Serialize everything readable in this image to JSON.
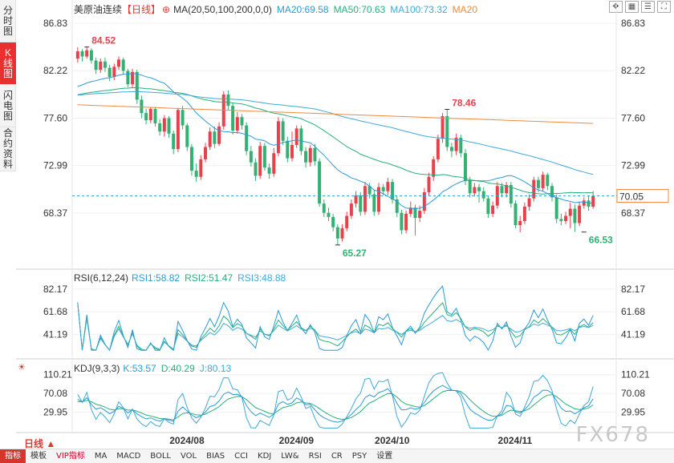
{
  "left_tabs": [
    {
      "label": "分时图",
      "active": false
    },
    {
      "label": "K线图",
      "active": true
    },
    {
      "label": "闪电图",
      "active": false
    },
    {
      "label": "合约资料",
      "active": false
    }
  ],
  "toolbar_icons": [
    "expand-icon",
    "grid-icon",
    "list-icon",
    "fullscreen-icon"
  ],
  "main_header": {
    "title": "美原油连续",
    "period": "【日线】",
    "ma_params": "MA(20,50,100,200,0,0)",
    "ma20": "MA20:69.58",
    "ma50": "MA50:70.63",
    "ma100": "MA100:73.32",
    "ma200": "MA20"
  },
  "rsi_header": {
    "name": "RSI(6,12,24)",
    "rsi1": "RSI1:58.82",
    "rsi2": "RSI2:51.47",
    "rsi3": "RSI3:48.88"
  },
  "kdj_header": {
    "name": "KDJ(9,3,3)",
    "k": "K:53.57",
    "d": "D:40.29",
    "j": "J:80.13"
  },
  "period_selector": "日线 ▲",
  "bottom_tabs": [
    "指标",
    "模板",
    "VIP指标",
    "MA",
    "MACD",
    "BOLL",
    "VOL",
    "BIAS",
    "CCI",
    "KDJ",
    "LW&",
    "RSI",
    "CR",
    "PSY",
    "设置"
  ],
  "watermark": "FX678",
  "colors": {
    "up": "#e8414b",
    "down": "#33b173",
    "ma20": "#2a9ad6",
    "ma50": "#26b07a",
    "ma100": "#3fa9d6",
    "ma200": "#ef8a3c",
    "grid": "#e6e6e6"
  },
  "chart_data": {
    "type": "candlestick",
    "price_axis": {
      "ticks": [
        86.83,
        82.22,
        77.6,
        72.99,
        68.37
      ],
      "range": [
        63.0,
        88.0
      ]
    },
    "last_price": 70.05,
    "annotations": [
      {
        "label": "84.52",
        "value": 84.52,
        "kind": "high"
      },
      {
        "label": "78.46",
        "value": 78.46,
        "kind": "high"
      },
      {
        "label": "65.27",
        "value": 65.27,
        "kind": "low"
      },
      {
        "label": "66.53",
        "value": 66.53,
        "kind": "low"
      }
    ],
    "x_labels": [
      "2024/08",
      "2024/09",
      "2024/10",
      "2024/11"
    ],
    "candles": [
      [
        83.4,
        84.1,
        84.5,
        83.0
      ],
      [
        84.1,
        83.6,
        84.3,
        83.1
      ],
      [
        83.6,
        84.2,
        84.52,
        83.4
      ],
      [
        84.2,
        83.2,
        84.4,
        82.9
      ],
      [
        83.2,
        82.3,
        83.5,
        81.9
      ],
      [
        82.3,
        83.1,
        83.4,
        82.0
      ],
      [
        83.1,
        82.5,
        83.5,
        82.1
      ],
      [
        82.5,
        81.6,
        82.8,
        81.2
      ],
      [
        81.6,
        82.6,
        82.9,
        81.3
      ],
      [
        82.6,
        83.3,
        83.6,
        82.3
      ],
      [
        83.3,
        82.2,
        83.5,
        81.8
      ],
      [
        82.2,
        80.9,
        82.4,
        80.6
      ],
      [
        80.9,
        82.1,
        82.4,
        80.6
      ],
      [
        82.1,
        79.4,
        82.3,
        79.0
      ],
      [
        79.4,
        78.1,
        79.8,
        77.6
      ],
      [
        78.1,
        77.4,
        78.5,
        77.0
      ],
      [
        77.4,
        78.5,
        78.7,
        77.1
      ],
      [
        78.5,
        77.1,
        78.7,
        76.8
      ],
      [
        77.1,
        76.3,
        77.5,
        75.9
      ],
      [
        76.3,
        77.6,
        77.9,
        75.8
      ],
      [
        77.6,
        76.1,
        77.8,
        75.7
      ],
      [
        76.1,
        74.6,
        76.4,
        74.1
      ],
      [
        74.6,
        78.4,
        78.6,
        74.3
      ],
      [
        78.4,
        76.9,
        78.8,
        76.5
      ],
      [
        76.9,
        74.8,
        77.1,
        74.4
      ],
      [
        74.8,
        72.5,
        75.1,
        72.0
      ],
      [
        72.5,
        71.9,
        73.2,
        71.4
      ],
      [
        71.9,
        73.6,
        74.0,
        71.6
      ],
      [
        73.6,
        74.8,
        75.2,
        73.3
      ],
      [
        74.8,
        76.3,
        76.7,
        74.5
      ],
      [
        76.3,
        75.1,
        76.8,
        74.7
      ],
      [
        75.1,
        76.8,
        77.2,
        74.9
      ],
      [
        76.8,
        79.9,
        80.2,
        76.5
      ],
      [
        79.9,
        78.8,
        80.3,
        78.4
      ],
      [
        78.8,
        76.4,
        79.1,
        76.0
      ],
      [
        76.4,
        77.7,
        78.2,
        76.1
      ],
      [
        77.7,
        76.9,
        78.0,
        76.5
      ],
      [
        76.9,
        74.4,
        77.2,
        74.0
      ],
      [
        74.4,
        73.3,
        74.9,
        72.9
      ],
      [
        73.3,
        72.0,
        73.7,
        71.5
      ],
      [
        72.0,
        74.9,
        75.3,
        71.7
      ],
      [
        74.9,
        72.8,
        75.2,
        72.5
      ],
      [
        72.8,
        72.2,
        73.2,
        71.7
      ],
      [
        72.2,
        74.2,
        74.7,
        71.9
      ],
      [
        74.2,
        77.3,
        77.7,
        73.9
      ],
      [
        77.3,
        75.4,
        77.6,
        75.0
      ],
      [
        75.4,
        73.7,
        75.8,
        73.3
      ],
      [
        73.7,
        75.0,
        76.3,
        73.4
      ],
      [
        75.0,
        76.6,
        76.9,
        74.7
      ],
      [
        76.6,
        74.4,
        76.9,
        74.0
      ],
      [
        74.4,
        73.3,
        74.8,
        72.8
      ],
      [
        73.3,
        74.7,
        75.0,
        72.9
      ],
      [
        74.7,
        73.4,
        75.1,
        73.0
      ],
      [
        73.4,
        69.3,
        73.7,
        69.0
      ],
      [
        69.3,
        68.4,
        69.7,
        68.0
      ],
      [
        68.4,
        68.0,
        68.9,
        67.6
      ],
      [
        68.0,
        67.0,
        68.3,
        66.6
      ],
      [
        67.0,
        65.9,
        67.3,
        65.27
      ],
      [
        65.9,
        66.9,
        67.3,
        65.6
      ],
      [
        66.9,
        68.1,
        68.5,
        66.6
      ],
      [
        68.1,
        69.3,
        69.7,
        67.8
      ],
      [
        69.3,
        70.1,
        70.5,
        68.9
      ],
      [
        70.1,
        68.5,
        70.4,
        68.1
      ],
      [
        68.5,
        71.0,
        71.4,
        68.2
      ],
      [
        71.0,
        70.2,
        71.3,
        69.8
      ],
      [
        70.2,
        68.5,
        70.6,
        68.1
      ],
      [
        68.5,
        70.9,
        71.3,
        68.2
      ],
      [
        70.9,
        70.5,
        71.2,
        70.1
      ],
      [
        70.5,
        71.4,
        71.8,
        70.1
      ],
      [
        71.4,
        69.7,
        71.7,
        69.3
      ],
      [
        69.7,
        68.4,
        70.0,
        68.0
      ],
      [
        68.4,
        66.7,
        68.7,
        66.3
      ],
      [
        66.7,
        68.3,
        68.6,
        66.4
      ],
      [
        68.3,
        68.9,
        69.5,
        68.0
      ],
      [
        68.9,
        67.9,
        69.2,
        66.2
      ],
      [
        67.9,
        68.6,
        69.1,
        67.5
      ],
      [
        68.6,
        70.4,
        70.8,
        68.3
      ],
      [
        70.4,
        71.9,
        72.3,
        70.1
      ],
      [
        71.9,
        73.6,
        73.9,
        71.5
      ],
      [
        73.6,
        75.6,
        76.0,
        73.3
      ],
      [
        75.6,
        77.8,
        78.1,
        75.2
      ],
      [
        77.8,
        74.8,
        78.46,
        74.4
      ],
      [
        74.8,
        74.4,
        75.2,
        73.8
      ],
      [
        74.4,
        75.7,
        76.1,
        74.0
      ],
      [
        75.7,
        74.2,
        76.0,
        73.8
      ],
      [
        74.2,
        71.5,
        74.6,
        71.1
      ],
      [
        71.5,
        70.3,
        71.9,
        69.9
      ],
      [
        70.3,
        70.9,
        71.3,
        70.0
      ],
      [
        70.9,
        70.5,
        71.2,
        69.4
      ],
      [
        70.5,
        69.8,
        70.9,
        69.5
      ],
      [
        69.8,
        68.3,
        70.1,
        67.9
      ],
      [
        68.3,
        69.1,
        69.5,
        68.0
      ],
      [
        69.1,
        71.0,
        71.4,
        68.8
      ],
      [
        71.0,
        70.3,
        71.3,
        69.9
      ],
      [
        70.3,
        71.1,
        71.4,
        69.9
      ],
      [
        71.1,
        69.3,
        71.4,
        68.9
      ],
      [
        69.3,
        67.2,
        69.6,
        66.9
      ],
      [
        67.2,
        67.6,
        68.1,
        66.5
      ],
      [
        67.6,
        69.0,
        69.4,
        67.3
      ],
      [
        69.0,
        69.8,
        70.2,
        68.6
      ],
      [
        69.8,
        71.6,
        71.9,
        69.5
      ],
      [
        71.6,
        70.8,
        71.9,
        70.4
      ],
      [
        70.8,
        72.1,
        72.4,
        70.5
      ],
      [
        72.1,
        71.0,
        72.3,
        70.6
      ],
      [
        71.0,
        69.9,
        71.3,
        69.5
      ],
      [
        69.9,
        67.8,
        70.2,
        67.4
      ],
      [
        67.8,
        67.6,
        68.3,
        67.2
      ],
      [
        67.6,
        68.1,
        68.5,
        67.3
      ],
      [
        68.1,
        68.8,
        69.4,
        66.9
      ],
      [
        68.8,
        67.4,
        69.2,
        66.53
      ],
      [
        67.4,
        69.1,
        69.5,
        67.1
      ],
      [
        69.1,
        69.6,
        69.9,
        68.8
      ],
      [
        69.6,
        69.0,
        70.1,
        68.6
      ],
      [
        69.0,
        70.05,
        70.5,
        68.8
      ]
    ],
    "rsi": {
      "axis_ticks": [
        82.17,
        61.68,
        41.19
      ]
    },
    "kdj": {
      "axis_ticks": [
        110.21,
        70.08,
        29.95
      ]
    }
  }
}
